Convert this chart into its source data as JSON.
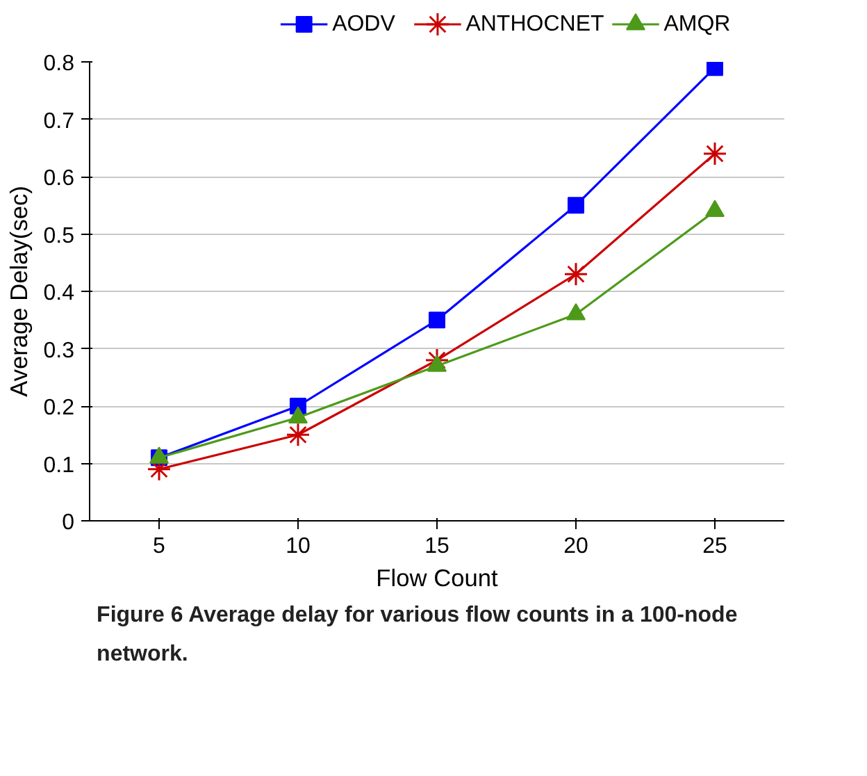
{
  "chart_data": {
    "type": "line",
    "xlabel": "Flow Count",
    "ylabel": "Average Delay(sec)",
    "categories": [
      "5",
      "10",
      "15",
      "20",
      "25"
    ],
    "series": [
      {
        "name": "AODV",
        "color": "#0000ff",
        "marker": "square",
        "values": [
          0.11,
          0.2,
          0.35,
          0.55,
          0.79
        ]
      },
      {
        "name": "ANTHOCNET",
        "color": "#cc0000",
        "marker": "cross",
        "values": [
          0.09,
          0.15,
          0.28,
          0.43,
          0.64
        ]
      },
      {
        "name": "AMQR",
        "color": "#4d9a1a",
        "marker": "triangle",
        "values": [
          0.11,
          0.18,
          0.27,
          0.36,
          0.54
        ]
      }
    ],
    "ylim": [
      0,
      0.8
    ],
    "yticks": [
      0,
      0.1,
      0.2,
      0.3,
      0.4,
      0.5,
      0.6,
      0.7,
      0.8
    ],
    "grid": "y",
    "legend": "top",
    "annotations": [
      "Figure 6 Average delay for various flow counts in a 100-node network."
    ]
  }
}
